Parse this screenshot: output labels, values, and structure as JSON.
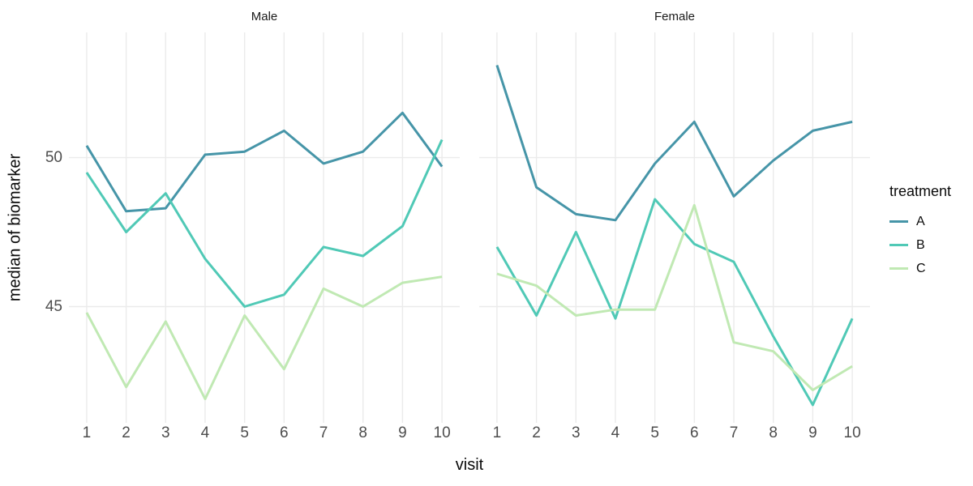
{
  "chart_data": {
    "type": "line",
    "title": "",
    "xlabel": "visit",
    "ylabel": "median of biomarker",
    "facet_variable_values": [
      "Male",
      "Female"
    ],
    "x": [
      1,
      2,
      3,
      4,
      5,
      6,
      7,
      8,
      9,
      10
    ],
    "xticks": [
      "1",
      "2",
      "3",
      "4",
      "5",
      "6",
      "7",
      "8",
      "9",
      "10"
    ],
    "yticks": [
      {
        "value": 45,
        "label": "45"
      },
      {
        "value": 50,
        "label": "50"
      }
    ],
    "xlim": [
      0.55,
      10.45
    ],
    "ylim": [
      41.1,
      54.2
    ],
    "grid": "major-only",
    "legend_position": "right",
    "facets": [
      {
        "label": "Male",
        "series": [
          {
            "name": "A",
            "values": [
              50.4,
              48.2,
              48.3,
              50.1,
              50.2,
              50.9,
              49.8,
              50.2,
              51.5,
              49.7
            ]
          },
          {
            "name": "B",
            "values": [
              49.5,
              47.5,
              48.8,
              46.6,
              45.0,
              45.4,
              47.0,
              46.7,
              47.7,
              50.6
            ]
          },
          {
            "name": "C",
            "values": [
              44.8,
              42.3,
              44.5,
              41.9,
              44.7,
              42.9,
              45.6,
              45.0,
              45.8,
              46.0
            ]
          }
        ]
      },
      {
        "label": "Female",
        "series": [
          {
            "name": "A",
            "values": [
              53.1,
              49.0,
              48.1,
              47.9,
              49.8,
              51.2,
              48.7,
              49.9,
              50.9,
              51.2
            ]
          },
          {
            "name": "B",
            "values": [
              47.0,
              44.7,
              47.5,
              44.6,
              48.6,
              47.1,
              46.5,
              44.0,
              41.7,
              44.6
            ]
          },
          {
            "name": "C",
            "values": [
              46.1,
              45.7,
              44.7,
              44.9,
              44.9,
              48.4,
              43.8,
              43.5,
              42.2,
              43.0
            ]
          }
        ]
      }
    ],
    "legend": {
      "title": "treatment",
      "entries": [
        {
          "label": "A",
          "color": "#4695a8"
        },
        {
          "label": "B",
          "color": "#50c9b6"
        },
        {
          "label": "C",
          "color": "#c0e9b3"
        }
      ]
    },
    "style": {
      "background": "#ffffff",
      "gridline_color": "#ebebeb",
      "tick_label_color": "#4d4d4d",
      "axis_title_color": "#0a0a0a",
      "line_width": 3
    }
  }
}
